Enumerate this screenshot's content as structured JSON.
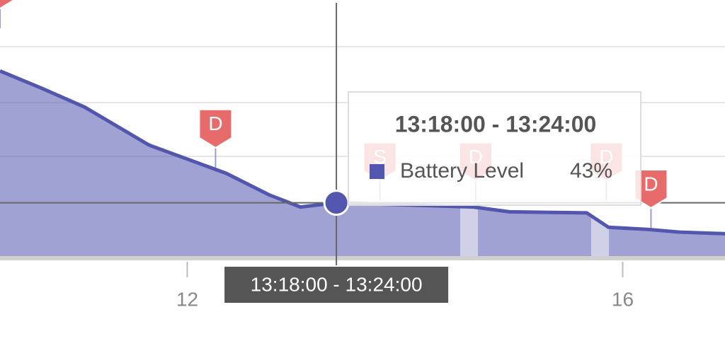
{
  "chart_data": {
    "type": "area",
    "x": [
      10.28,
      10.67,
      11.06,
      11.65,
      12.36,
      12.75,
      13.04,
      13.37,
      14.63,
      14.96,
      15.67,
      15.87,
      16.23,
      16.52,
      16.94
    ],
    "series": [
      {
        "name": "Battery Level",
        "color": "#5256ae",
        "values": [
          67.7,
          64.4,
          60.9,
          53.8,
          48.5,
          44.5,
          42.2,
          43,
          42.2,
          41.3,
          41.1,
          38.4,
          38,
          37.5,
          37.2
        ]
      }
    ],
    "xlim": [
      10.28,
      16.94
    ],
    "ylim": [
      33,
      81
    ],
    "xticks": [
      12,
      16
    ],
    "annotations": [
      {
        "label": "D",
        "x": 10.28,
        "y": 75.7
      },
      {
        "label": "D",
        "x": 12.26,
        "y": 49.6
      },
      {
        "label": "S",
        "x": 13.77,
        "y": 43.4
      },
      {
        "label": "D",
        "x": 14.65,
        "y": 43.4
      },
      {
        "label": "D",
        "x": 15.85,
        "y": 43.4
      },
      {
        "label": "D",
        "x": 16.26,
        "y": 38.3
      }
    ],
    "tooltip": {
      "title": "13:18:00 - 13:24:00",
      "x": 13.37,
      "value": 43,
      "value_label": "43%"
    }
  }
}
